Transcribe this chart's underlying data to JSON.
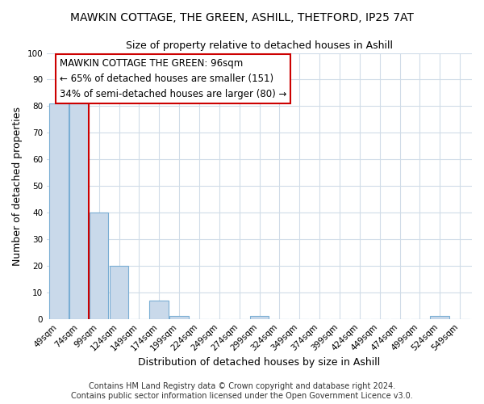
{
  "title": "MAWKIN COTTAGE, THE GREEN, ASHILL, THETFORD, IP25 7AT",
  "subtitle": "Size of property relative to detached houses in Ashill",
  "xlabel": "Distribution of detached houses by size in Ashill",
  "ylabel": "Number of detached properties",
  "categories": [
    "49sqm",
    "74sqm",
    "99sqm",
    "124sqm",
    "149sqm",
    "174sqm",
    "199sqm",
    "224sqm",
    "249sqm",
    "274sqm",
    "299sqm",
    "324sqm",
    "349sqm",
    "374sqm",
    "399sqm",
    "424sqm",
    "449sqm",
    "474sqm",
    "499sqm",
    "524sqm",
    "549sqm"
  ],
  "values": [
    81,
    81,
    40,
    20,
    0,
    7,
    1,
    0,
    0,
    0,
    1,
    0,
    0,
    0,
    0,
    0,
    0,
    0,
    0,
    1,
    0
  ],
  "bar_color": "#c9d9ea",
  "bar_edge_color": "#7aaed4",
  "property_label": "MAWKIN COTTAGE THE GREEN: 96sqm",
  "annotation_line1": "← 65% of detached houses are smaller (151)",
  "annotation_line2": "34% of semi-detached houses are larger (80) →",
  "vline_color": "#cc0000",
  "vline_x": 1.5,
  "annotation_box_color": "#ffffff",
  "annotation_box_edge": "#cc0000",
  "ylim": [
    0,
    100
  ],
  "yticks": [
    0,
    10,
    20,
    30,
    40,
    50,
    60,
    70,
    80,
    90,
    100
  ],
  "footer": "Contains HM Land Registry data © Crown copyright and database right 2024.\nContains public sector information licensed under the Open Government Licence v3.0.",
  "background_color": "#ffffff",
  "plot_background": "#ffffff",
  "grid_color": "#d0dce8",
  "title_fontsize": 10,
  "subtitle_fontsize": 9,
  "axis_label_fontsize": 9,
  "tick_fontsize": 7.5,
  "footer_fontsize": 7,
  "annotation_fontsize": 8.5
}
